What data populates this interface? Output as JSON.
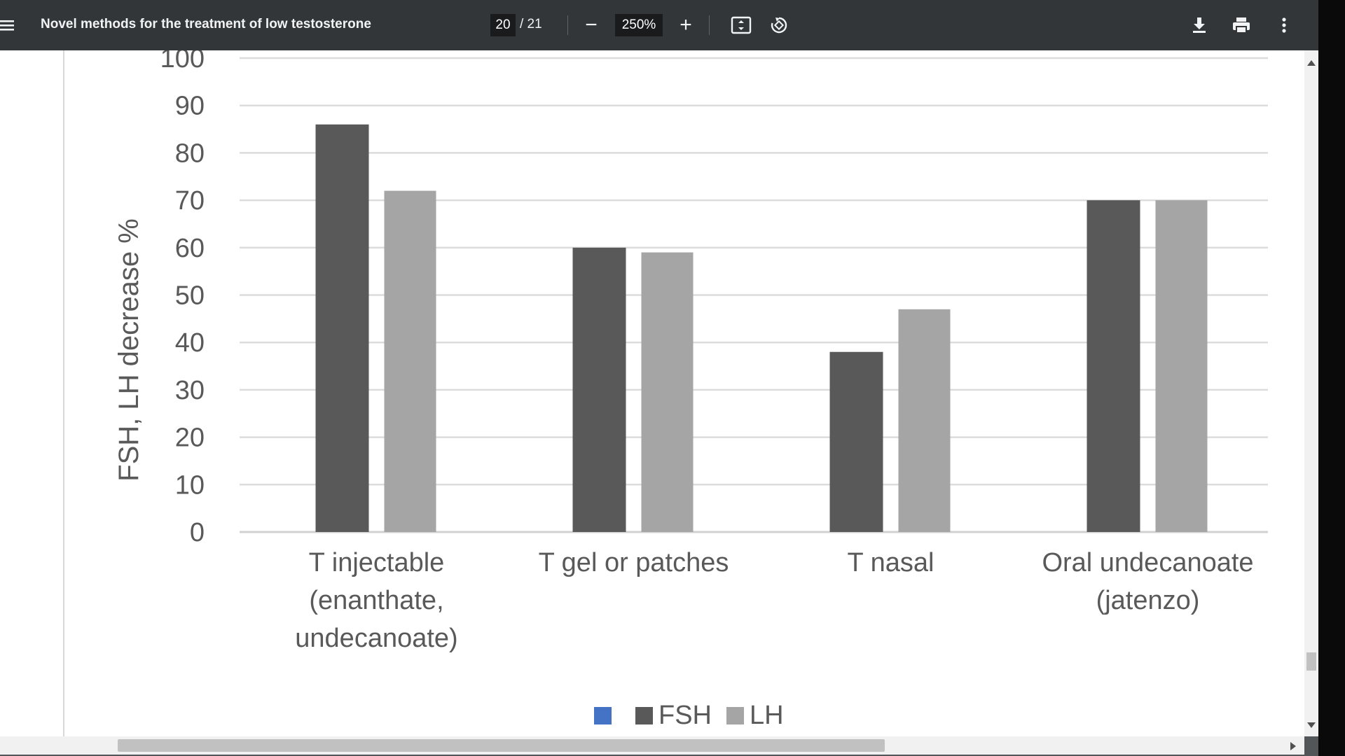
{
  "toolbar": {
    "title": "Novel methods for the treatment of low testosterone",
    "page_current": "20",
    "page_total": "/ 21",
    "zoom_value": "250%",
    "zoom_out_label": "−",
    "zoom_in_label": "+",
    "icons": [
      "menu-icon",
      "fit-page-icon",
      "rotate-icon",
      "download-icon",
      "print-icon",
      "more-vert-icon"
    ]
  },
  "chart_data": {
    "type": "bar",
    "ylabel": "FSH, LH decrease %",
    "ylim": [
      0,
      100
    ],
    "yticks": [
      0,
      10,
      20,
      30,
      40,
      50,
      60,
      70,
      80,
      90,
      100
    ],
    "categories": [
      [
        "T injectable",
        "(enanthate,",
        "undecanoate)"
      ],
      [
        "T gel or patches"
      ],
      [
        "T nasal"
      ],
      [
        "Oral undecanoate",
        "(jatenzo)"
      ]
    ],
    "series": [
      {
        "name": "",
        "color": "#4472c4",
        "values": [
          0,
          0,
          0,
          0
        ]
      },
      {
        "name": "FSH",
        "color": "#595959",
        "values": [
          86,
          60,
          38,
          70
        ]
      },
      {
        "name": "LH",
        "color": "#a5a5a5",
        "values": [
          72,
          59,
          47,
          70
        ]
      }
    ],
    "legend_position": "bottom",
    "grid": true
  }
}
